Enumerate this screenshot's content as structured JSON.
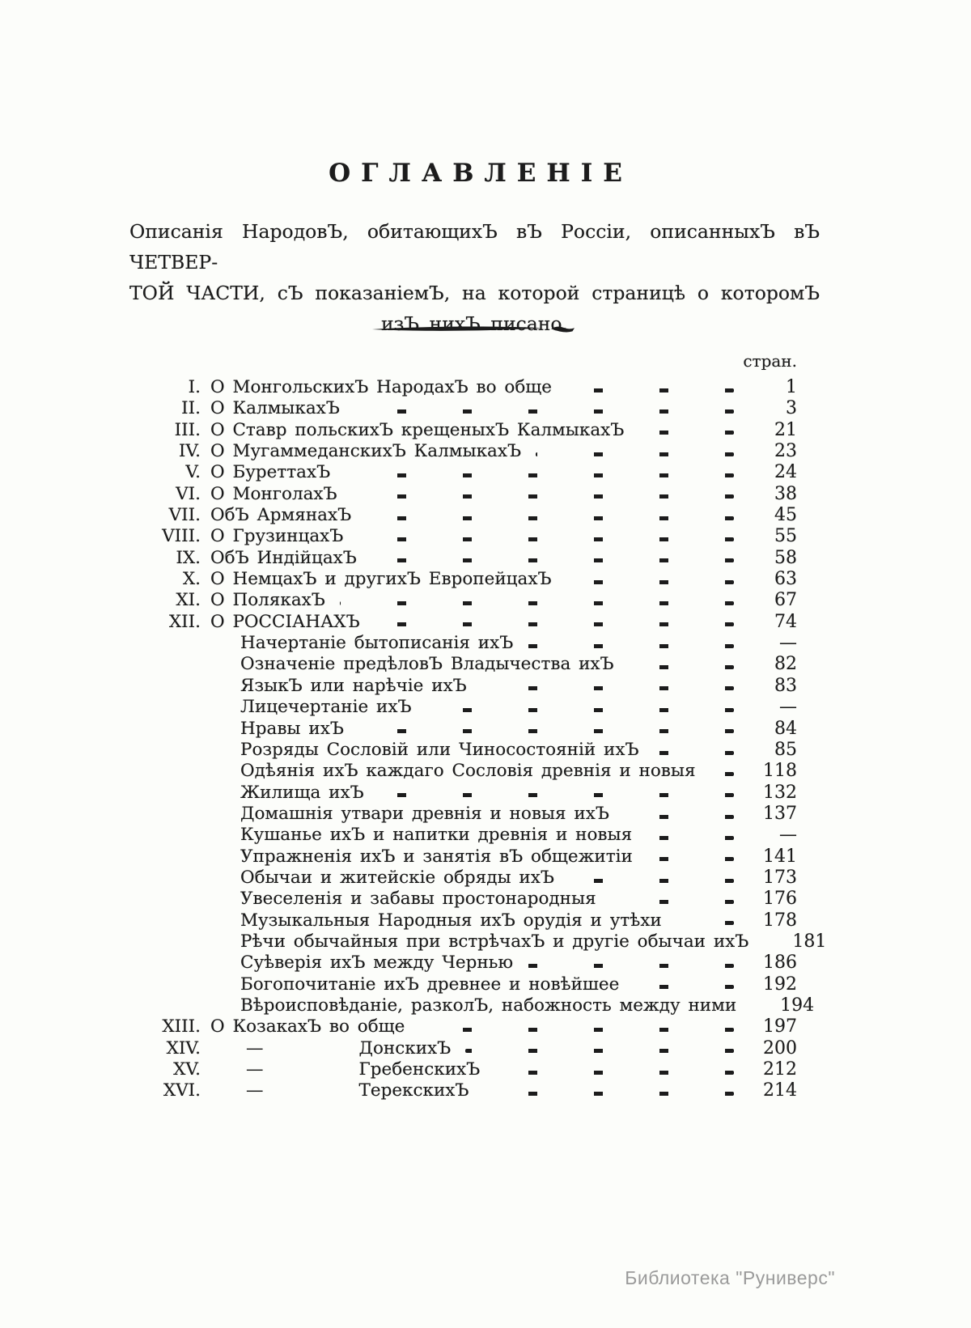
{
  "document": {
    "title": "ОГЛАВЛЕНІЕ",
    "intro_lines": [
      "Описанія НародовЪ, обитающихЪ вЪ Россіи, описанныхЪ вЪ ЧЕТВЕР-",
      "ТОЙ ЧАСТИ, сЪ показаніемЪ, на которой страницѣ о которомЪ",
      "изЪ нихЪ писано."
    ],
    "page_column_header": "стран.",
    "watermark": "Библиотека \"Руниверс\""
  },
  "colors": {
    "paper": "#fcfdfa",
    "ink": "#1c1c1c",
    "watermark": "#9a9a9a"
  },
  "toc": {
    "rows": [
      {
        "num": "I.",
        "type": "main",
        "title": "О МонгольскихЪ НародахЪ во обще",
        "page": "1"
      },
      {
        "num": "II.",
        "type": "main",
        "title": "О КалмыкахЪ",
        "page": "3"
      },
      {
        "num": "III.",
        "type": "main",
        "title": "О Ставр польскихЪ крещеныхЪ КалмыкахЪ",
        "page": "21"
      },
      {
        "num": "IV.",
        "type": "main",
        "title": "О МугаммеданскихЪ КалмыкахЪ",
        "page": "23"
      },
      {
        "num": "V.",
        "type": "main",
        "title": "О БуреттахЪ",
        "page": "24"
      },
      {
        "num": "VI.",
        "type": "main",
        "title": "О МонголахЪ",
        "page": "38"
      },
      {
        "num": "VII.",
        "type": "main",
        "title": "ОбЪ АрмянахЪ",
        "page": "45"
      },
      {
        "num": "VIII.",
        "type": "main",
        "title": "О ГрузинцахЪ",
        "page": "55"
      },
      {
        "num": "IX.",
        "type": "main",
        "title": "ОбЪ ИндійцахЪ",
        "page": "58"
      },
      {
        "num": "X.",
        "type": "main",
        "title": "О НемцахЪ и другихЪ ЕвропейцахЪ",
        "page": "63"
      },
      {
        "num": "XI.",
        "type": "main",
        "title": "О ПолякахЪ",
        "page": "67"
      },
      {
        "num": "XII.",
        "type": "main",
        "title": "О РОССІАНАХЪ",
        "page": "74"
      },
      {
        "num": "",
        "type": "sub",
        "title": "Начертаніе бытописанія ихЪ",
        "page": "—"
      },
      {
        "num": "",
        "type": "sub",
        "title": "Означеніе предѣловЪ Владычества ихЪ",
        "page": "82"
      },
      {
        "num": "",
        "type": "sub",
        "title": "ЯзыкЪ или нарѣчіе ихЪ",
        "page": "83"
      },
      {
        "num": "",
        "type": "sub",
        "title": "Лицечертаніе ихЪ",
        "page": "—"
      },
      {
        "num": "",
        "type": "sub",
        "title": "Нравы ихЪ",
        "page": "84"
      },
      {
        "num": "",
        "type": "sub",
        "title": "Розряды Сословій или Чиносостояній ихЪ",
        "page": "85"
      },
      {
        "num": "",
        "type": "sub",
        "title": "Одѣянія ихЪ каждаго Сословія древнія и новыя",
        "page": "118"
      },
      {
        "num": "",
        "type": "sub",
        "title": "Жилища ихЪ",
        "page": "132"
      },
      {
        "num": "",
        "type": "sub",
        "title": "Домашнія утвари древнія и новыя ихЪ",
        "page": "137"
      },
      {
        "num": "",
        "type": "sub",
        "title": "Кушанье ихЪ и напитки древнія и новыя",
        "page": "—"
      },
      {
        "num": "",
        "type": "sub",
        "title": "Упражненія ихЪ и занятія вЪ общежитіи",
        "page": "141"
      },
      {
        "num": "",
        "type": "sub",
        "title": "Обычаи и житейскіе обряды ихЪ",
        "page": "173"
      },
      {
        "num": "",
        "type": "sub",
        "title": "Увеселенія и забавы простонародныя",
        "page": "176"
      },
      {
        "num": "",
        "type": "sub",
        "title": "Музыкальныя Народныя ихЪ орудія и утѣхи",
        "page": "178"
      },
      {
        "num": "",
        "type": "sub",
        "title": "Рѣчи обычайныя при встрѣчахЪ и другіе обычаи ихЪ",
        "page": "181",
        "leader": false
      },
      {
        "num": "",
        "type": "sub",
        "title": "Суѣверія ихЪ между Чернью",
        "page": "186"
      },
      {
        "num": "",
        "type": "sub",
        "title": "Богопочитаніе ихЪ древнее и новѣйшее",
        "page": "192"
      },
      {
        "num": "",
        "type": "sub",
        "title": "Вѣроисповѣданіе, разколЪ, набожность между ними",
        "page": "194",
        "leader": false
      },
      {
        "num": "XIII.",
        "type": "main",
        "title": "О КозакахЪ во обще",
        "page": "197"
      },
      {
        "num": "XIV.",
        "type": "ditto",
        "ditto_mark": "—",
        "title": "ДонскихЪ",
        "page": "200"
      },
      {
        "num": "XV.",
        "type": "ditto",
        "ditto_mark": "—",
        "title": "ГребенскихЪ",
        "page": "212"
      },
      {
        "num": "XVI.",
        "type": "ditto",
        "ditto_mark": "—",
        "title": "ТерекскихЪ",
        "page": "214"
      }
    ]
  }
}
